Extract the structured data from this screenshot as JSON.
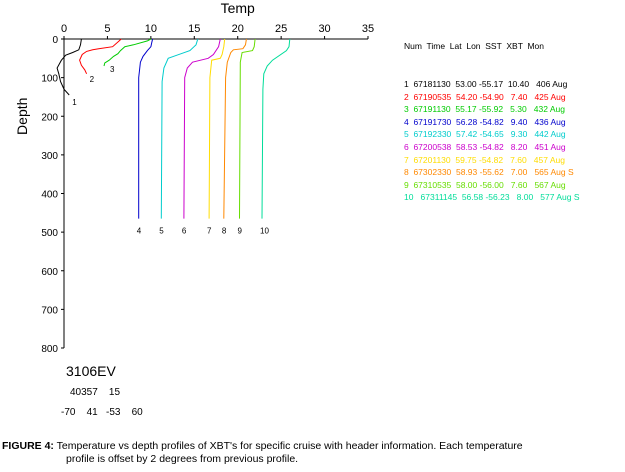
{
  "chart_data": {
    "type": "line",
    "xlabel": "Temp",
    "ylabel": "Depth",
    "xlim": [
      0,
      35
    ],
    "ylim": [
      0,
      800
    ],
    "x_ticks": [
      0,
      5,
      10,
      15,
      20,
      25,
      30,
      35
    ],
    "y_ticks": [
      0,
      100,
      200,
      300,
      400,
      500,
      600,
      700,
      800
    ],
    "y_inverted": true,
    "profile_offset_deg": 2,
    "legend_header": [
      "Num",
      "Time",
      "Lat",
      "Lon",
      "SST",
      "XBT",
      "Mon"
    ],
    "series": [
      {
        "label": "1",
        "color": "#000000",
        "legend": "1  67181130  53.00 -55.17  10.40   406 Aug",
        "points": [
          [
            2.0,
            0
          ],
          [
            1.9,
            15
          ],
          [
            1.7,
            28
          ],
          [
            1.0,
            35
          ],
          [
            0.2,
            42
          ],
          [
            -0.3,
            55
          ],
          [
            -0.8,
            75
          ],
          [
            -0.6,
            90
          ],
          [
            -0.4,
            110
          ],
          [
            0.0,
            130
          ],
          [
            0.6,
            145
          ]
        ]
      },
      {
        "label": "2",
        "color": "#ff0000",
        "legend": "2  67190535  54.20 -54.90   7.40   425 Aug",
        "points": [
          [
            6.6,
            0
          ],
          [
            5.6,
            20
          ],
          [
            4.0,
            25
          ],
          [
            3.3,
            28
          ],
          [
            2.6,
            32
          ],
          [
            2.1,
            40
          ],
          [
            1.8,
            55
          ],
          [
            2.0,
            68
          ],
          [
            2.4,
            80
          ],
          [
            2.6,
            90
          ]
        ]
      },
      {
        "label": "3",
        "color": "#00cc00",
        "legend": "3  67191130  55.17 -55.92   5.30   432 Aug",
        "points": [
          [
            10.0,
            0
          ],
          [
            9.6,
            5
          ],
          [
            8.0,
            15
          ],
          [
            7.0,
            20
          ],
          [
            6.5,
            30
          ],
          [
            6.2,
            38
          ],
          [
            5.7,
            45
          ],
          [
            5.2,
            55
          ],
          [
            4.7,
            62
          ],
          [
            4.6,
            70
          ]
        ]
      },
      {
        "label": "4",
        "color": "#0000cc",
        "legend": "4  67191730  56.28 -54.82   9.40   436 Aug",
        "points": [
          [
            10.2,
            0
          ],
          [
            10.1,
            10
          ],
          [
            10.0,
            20
          ],
          [
            9.6,
            30
          ],
          [
            9.1,
            45
          ],
          [
            8.8,
            60
          ],
          [
            8.6,
            100
          ],
          [
            8.6,
            465
          ]
        ]
      },
      {
        "label": "5",
        "color": "#00cccc",
        "legend": "5  67192330  57.42 -54.65   9.30   442 Aug",
        "points": [
          [
            15.4,
            0
          ],
          [
            15.2,
            15
          ],
          [
            14.5,
            30
          ],
          [
            13.0,
            42
          ],
          [
            12.0,
            50
          ],
          [
            11.5,
            75
          ],
          [
            11.3,
            110
          ],
          [
            11.2,
            465
          ]
        ]
      },
      {
        "label": "6",
        "color": "#cc00cc",
        "legend": "6  67200538  58.53 -54.82   8.20   451 Aug",
        "points": [
          [
            18.0,
            0
          ],
          [
            17.8,
            20
          ],
          [
            17.2,
            40
          ],
          [
            16.6,
            50
          ],
          [
            14.8,
            60
          ],
          [
            14.2,
            75
          ],
          [
            13.9,
            100
          ],
          [
            13.8,
            465
          ]
        ]
      },
      {
        "label": "7",
        "color": "#ffdd00",
        "legend": "7  67201130  59.75 -54.82   7.60   457 Aug",
        "points": [
          [
            18.5,
            0
          ],
          [
            18.4,
            20
          ],
          [
            18.2,
            40
          ],
          [
            18.0,
            50
          ],
          [
            17.0,
            55
          ],
          [
            16.8,
            100
          ],
          [
            16.7,
            465
          ]
        ]
      },
      {
        "label": "8",
        "color": "#ff8800",
        "legend": "8  67302330  58.93 -55.62   7.00   565 Aug S",
        "points": [
          [
            21.0,
            0
          ],
          [
            20.9,
            15
          ],
          [
            20.6,
            25
          ],
          [
            19.5,
            28
          ],
          [
            19.2,
            35
          ],
          [
            18.8,
            60
          ],
          [
            18.6,
            100
          ],
          [
            18.4,
            465
          ]
        ]
      },
      {
        "label": "9",
        "color": "#66dd00",
        "legend": "9  67310535  58.00 -56.00   7.60   567 Aug",
        "points": [
          [
            22.0,
            0
          ],
          [
            21.9,
            20
          ],
          [
            21.7,
            30
          ],
          [
            20.5,
            35
          ],
          [
            20.3,
            60
          ],
          [
            20.2,
            465
          ]
        ]
      },
      {
        "label": "10",
        "color": "#00dd99",
        "legend": "10   67311145  56.58 -56.23   8.00   577 Aug S",
        "points": [
          [
            26.0,
            0
          ],
          [
            25.9,
            20
          ],
          [
            25.6,
            30
          ],
          [
            24.0,
            55
          ],
          [
            23.4,
            70
          ],
          [
            23.0,
            90
          ],
          [
            22.9,
            130
          ],
          [
            22.8,
            465
          ]
        ]
      }
    ]
  },
  "cruise": {
    "id": "3106EV",
    "line1": "40357    15",
    "line2": "-70    41   -53    60"
  },
  "caption": {
    "label": "FIGURE 4:",
    "text1": "Temperature vs depth profiles of XBT's for  specific cruise with header information.  Each temperature",
    "text2": "profile is offset by 2 degrees from previous profile."
  }
}
